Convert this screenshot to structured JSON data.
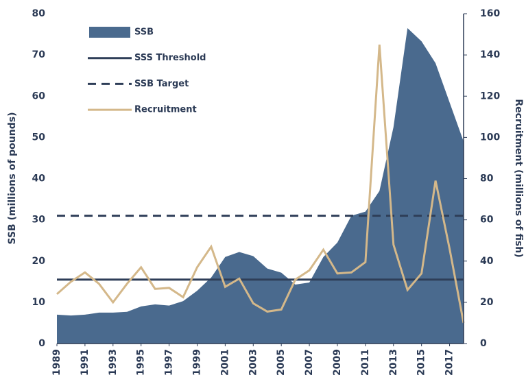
{
  "chart_data": {
    "type": "area-line",
    "x": [
      1989,
      1990,
      1991,
      1992,
      1993,
      1994,
      1995,
      1996,
      1997,
      1998,
      1999,
      2000,
      2001,
      2002,
      2003,
      2004,
      2005,
      2006,
      2007,
      2008,
      2009,
      2010,
      2011,
      2012,
      2013,
      2014,
      2015,
      2016,
      2017,
      2018
    ],
    "xlim": [
      1989,
      2018
    ],
    "xticks": [
      1989,
      1991,
      1993,
      1995,
      1997,
      1999,
      2001,
      2003,
      2005,
      2007,
      2009,
      2011,
      2013,
      2015,
      2017
    ],
    "ylabel": "SSB (millions of pounds)",
    "y2label": "Recruitment (millions of fish)",
    "ylim": [
      0,
      80
    ],
    "yticks": [
      0,
      10,
      20,
      30,
      40,
      50,
      60,
      70,
      80
    ],
    "y2lim": [
      0,
      160
    ],
    "y2ticks": [
      0,
      20,
      40,
      60,
      80,
      100,
      120,
      140,
      160
    ],
    "series": [
      {
        "name": "SSB",
        "kind": "area",
        "color": "#4a6a8e",
        "axis": "y",
        "values": [
          7.0,
          6.8,
          7.0,
          7.5,
          7.5,
          7.7,
          9.0,
          9.5,
          9.2,
          10.3,
          12.8,
          16.0,
          21.0,
          22.2,
          21.2,
          18.2,
          17.2,
          14.3,
          14.8,
          21.0,
          24.5,
          31.0,
          32.0,
          37.0,
          52.5,
          76.5,
          73.3,
          68.0,
          58.5,
          49.0
        ]
      },
      {
        "name": "Recruitment",
        "kind": "line",
        "color": "#d4b88a",
        "axis": "y2",
        "values": [
          24,
          30,
          34.5,
          29,
          20,
          29,
          37,
          26.5,
          27,
          22.5,
          37,
          47,
          27.5,
          31.5,
          19.5,
          15.5,
          16.5,
          31,
          35.5,
          45.5,
          34,
          34.5,
          39.5,
          145,
          48,
          26,
          34,
          79,
          46,
          10
        ]
      }
    ],
    "reference_lines": [
      {
        "name": "SSS Threshold",
        "value": 15.5,
        "color": "#2e3e58",
        "dash": false
      },
      {
        "name": "SSB Target",
        "value": 31,
        "color": "#2e3e58",
        "dash": true
      }
    ]
  }
}
